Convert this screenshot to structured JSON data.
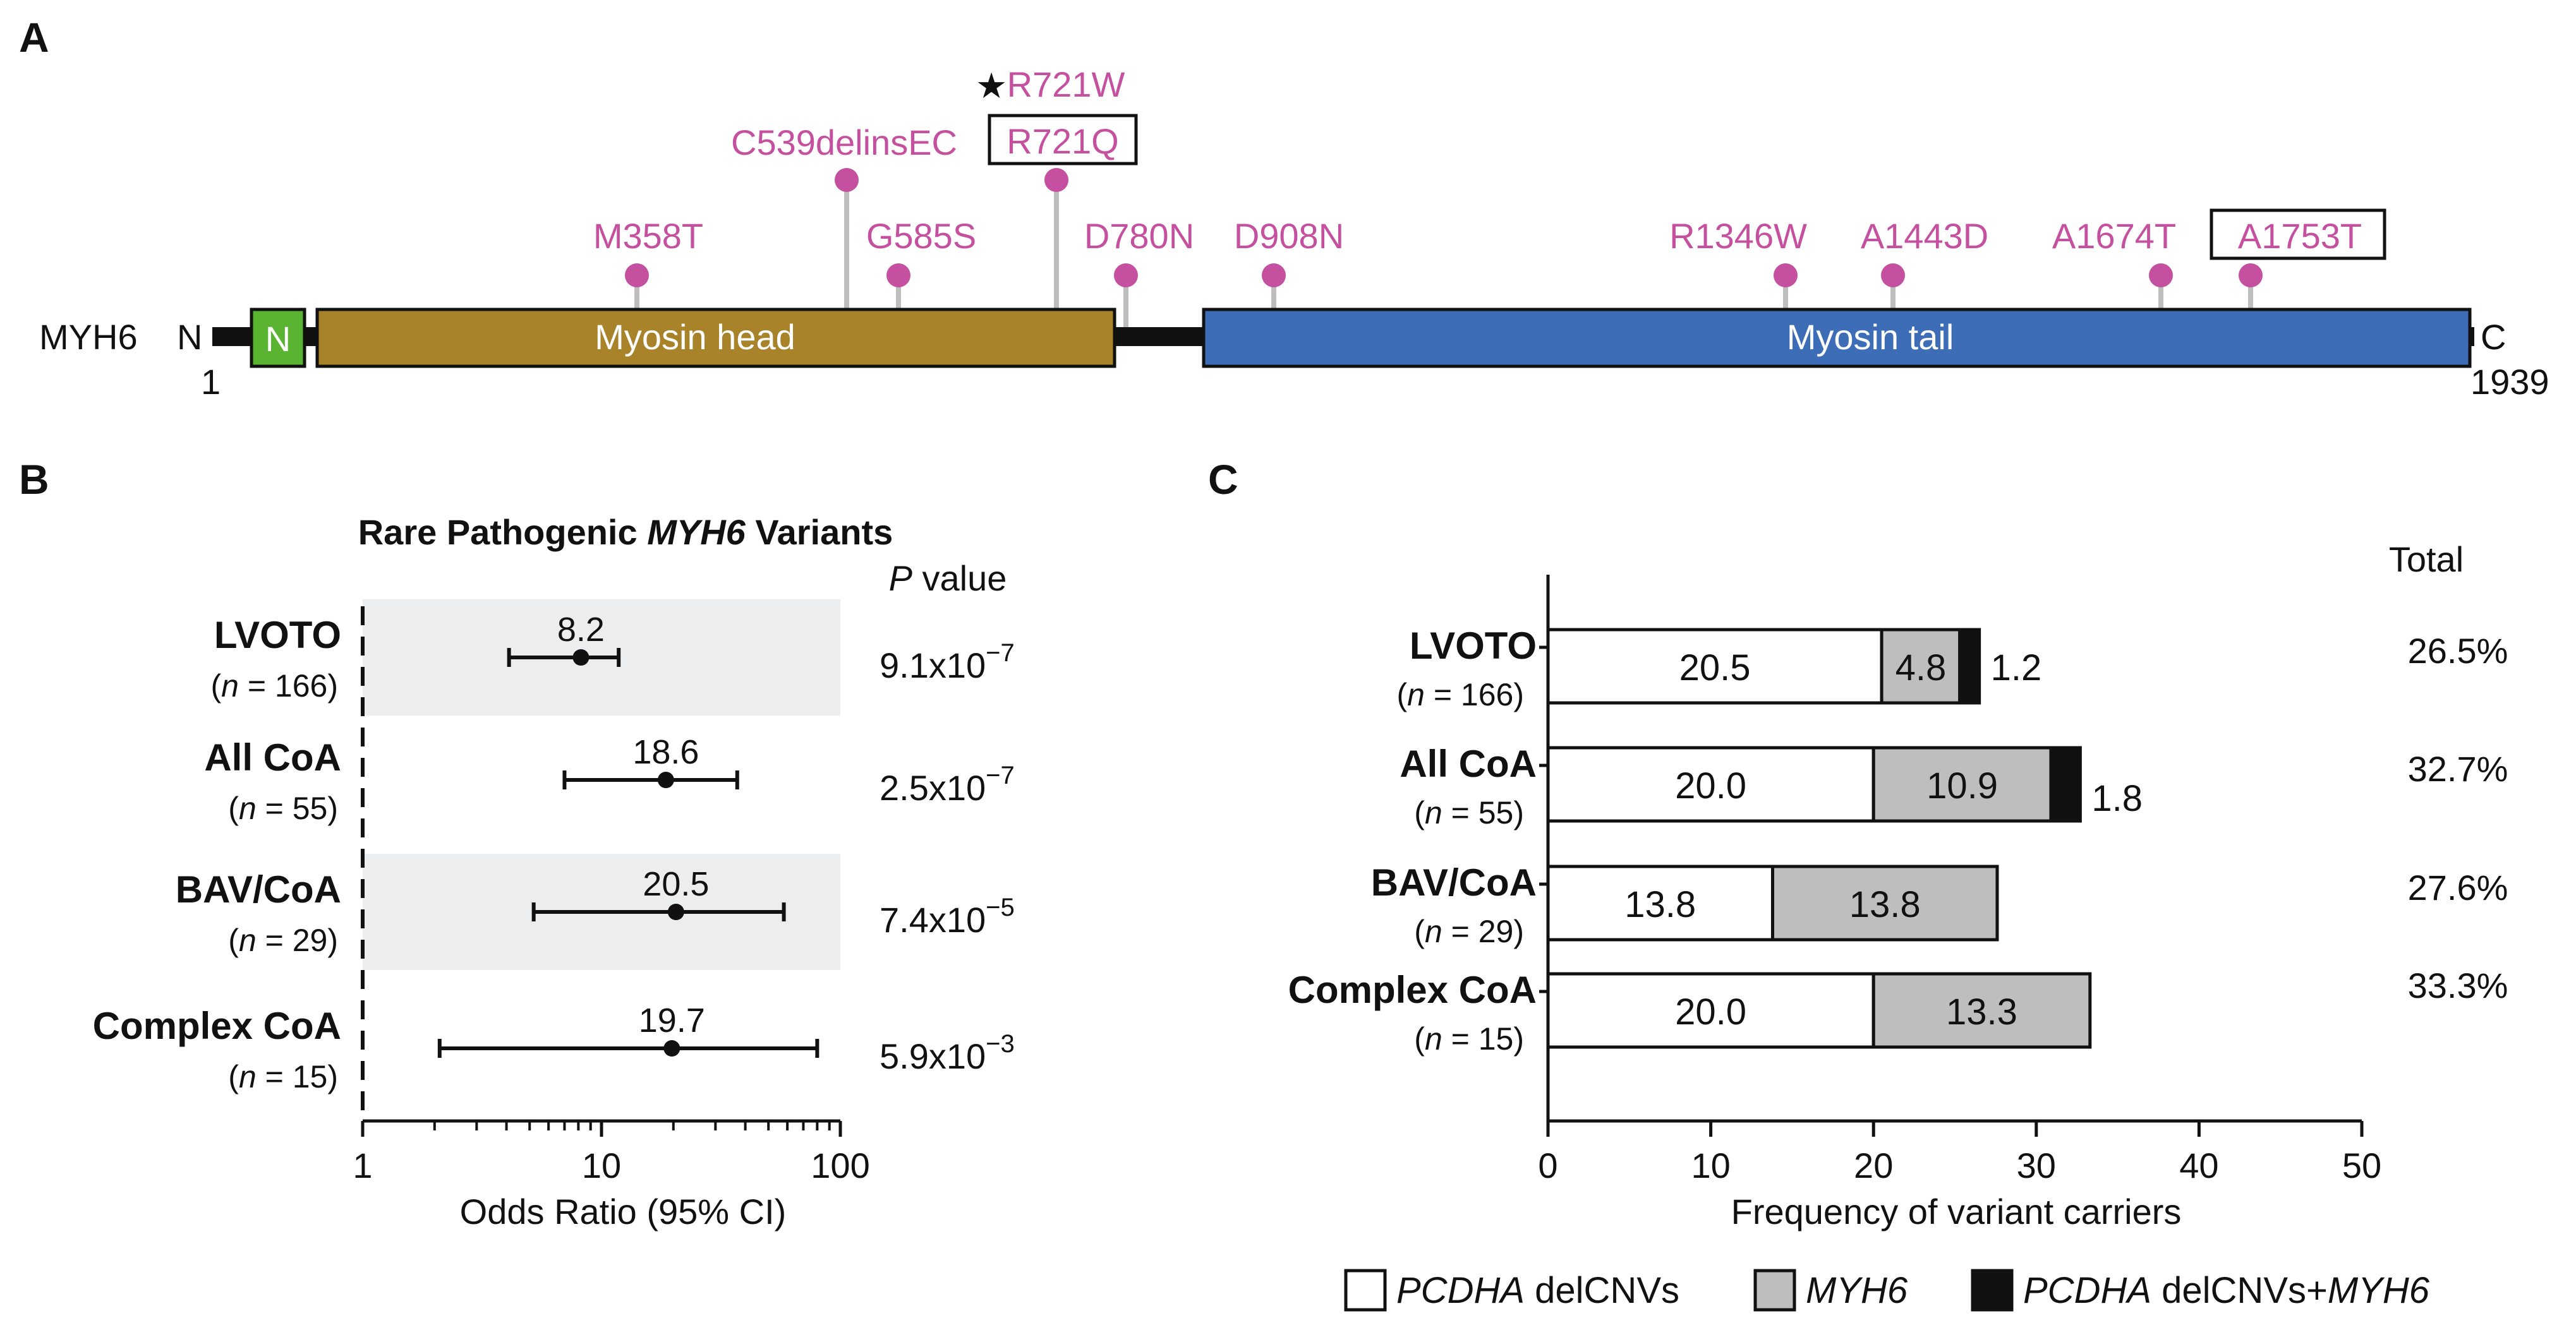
{
  "colors": {
    "variant": "#C4509F",
    "stem": "#BDBDBD",
    "myosin_head": "#A8832A",
    "myosin_tail": "#3E6DB7",
    "n_domain": "#5BB431",
    "shade": "#ECEDEF",
    "gray_fill": "#BEBEBE",
    "black": "#111111"
  },
  "panel_labels": {
    "a": "A",
    "b": "B",
    "c": "C"
  },
  "panel_a": {
    "protein": "MYH6",
    "n_term": "N",
    "c_term": "C",
    "start": "1",
    "end": "1939",
    "n_domain_label": "N",
    "head_label": "Myosin head",
    "tail_label": "Myosin tail",
    "star_symbol": "★",
    "variants": [
      {
        "label": "M358T",
        "boxed": false,
        "starred": false
      },
      {
        "label": "C539delinsEC",
        "boxed": false,
        "starred": false
      },
      {
        "label": "G585S",
        "boxed": false,
        "starred": false
      },
      {
        "label": "R721W",
        "boxed": false,
        "starred": true
      },
      {
        "label": "R721Q",
        "boxed": true,
        "starred": false
      },
      {
        "label": "D780N",
        "boxed": false,
        "starred": false
      },
      {
        "label": "D908N",
        "boxed": false,
        "starred": false
      },
      {
        "label": "R1346W",
        "boxed": false,
        "starred": false
      },
      {
        "label": "A1443D",
        "boxed": false,
        "starred": false
      },
      {
        "label": "A1674T",
        "boxed": false,
        "starred": false
      },
      {
        "label": "A1753T",
        "boxed": true,
        "starred": false
      }
    ]
  },
  "chart_data": [
    {
      "type": "forest",
      "title_prefix": "Rare Pathogenic ",
      "title_gene": "MYH6",
      "title_suffix": " Variants",
      "pvalue_header_italic": "P",
      "pvalue_header_rest": " value",
      "xlabel": "Odds Ratio (95% CI)",
      "xscale": "log",
      "xlim": [
        1,
        100
      ],
      "xticks": [
        1,
        10,
        100
      ],
      "xtick_labels": [
        "1",
        "10",
        "100"
      ],
      "groups": [
        {
          "name": "LVOTO",
          "n_text": "(n = 166)",
          "n_italic": "n",
          "n_rest": " = 166)",
          "or": 8.2,
          "or_label": "8.2",
          "ci_low": 4.1,
          "ci_high": 11.8,
          "p_mantissa": "9.1x10",
          "p_exponent": "−7",
          "shaded": true
        },
        {
          "name": "All CoA",
          "n_text": "(n = 55)",
          "n_italic": "n",
          "n_rest": " = 55)",
          "or": 18.6,
          "or_label": "18.6",
          "ci_low": 7.0,
          "ci_high": 37.0,
          "p_mantissa": "2.5x10",
          "p_exponent": "−7",
          "shaded": false
        },
        {
          "name": "BAV/CoA",
          "n_text": "(n = 29)",
          "n_italic": "n",
          "n_rest": " = 29)",
          "or": 20.5,
          "or_label": "20.5",
          "ci_low": 5.2,
          "ci_high": 58.0,
          "p_mantissa": "7.4x10",
          "p_exponent": "−5",
          "shaded": true
        },
        {
          "name": "Complex CoA",
          "n_text": "(n = 15)",
          "n_italic": "n",
          "n_rest": " = 15)",
          "or": 19.7,
          "or_label": "19.7",
          "ci_low": 2.1,
          "ci_high": 80.0,
          "p_mantissa": "5.9x10",
          "p_exponent": "−3",
          "shaded": false
        }
      ]
    },
    {
      "type": "bar",
      "orientation": "horizontal",
      "stacked": true,
      "xlabel": "Frequency of variant carriers",
      "xlim": [
        0,
        50
      ],
      "xticks": [
        0,
        10,
        20,
        30,
        40,
        50
      ],
      "xtick_labels": [
        "0",
        "10",
        "20",
        "30",
        "40",
        "50"
      ],
      "total_header": "Total",
      "categories": [
        "LVOTO",
        "All CoA",
        "BAV/CoA",
        "Complex CoA"
      ],
      "n_labels": [
        {
          "italic": "n",
          "rest": " = 166)"
        },
        {
          "italic": "n",
          "rest": " = 55)"
        },
        {
          "italic": "n",
          "rest": " = 29)"
        },
        {
          "italic": "n",
          "rest": " = 15)"
        }
      ],
      "series": [
        {
          "name": "PCDHA delCNVs",
          "values": [
            20.5,
            20.0,
            13.8,
            20.0
          ],
          "labels": [
            "20.5",
            "20.0",
            "13.8",
            "20.0"
          ]
        },
        {
          "name": "MYH6",
          "values": [
            4.8,
            10.9,
            13.8,
            13.3
          ],
          "labels": [
            "4.8",
            "10.9",
            "13.8",
            "13.3"
          ]
        },
        {
          "name": "PCDHA delCNVs+MYH6",
          "values": [
            1.2,
            1.8,
            0,
            0
          ],
          "labels": [
            "1.2",
            "1.8",
            "",
            ""
          ]
        }
      ],
      "totals": [
        "26.5%",
        "32.7%",
        "27.6%",
        "33.3%"
      ],
      "legend": [
        {
          "italic": "PCDHA",
          "rest": " delCNVs",
          "italic2": "",
          "fill": "white"
        },
        {
          "italic": "MYH6",
          "rest": "",
          "italic2": "",
          "fill": "gray"
        },
        {
          "italic": "PCDHA",
          "rest": " delCNVs+",
          "italic2": "MYH6",
          "fill": "black"
        }
      ]
    }
  ]
}
